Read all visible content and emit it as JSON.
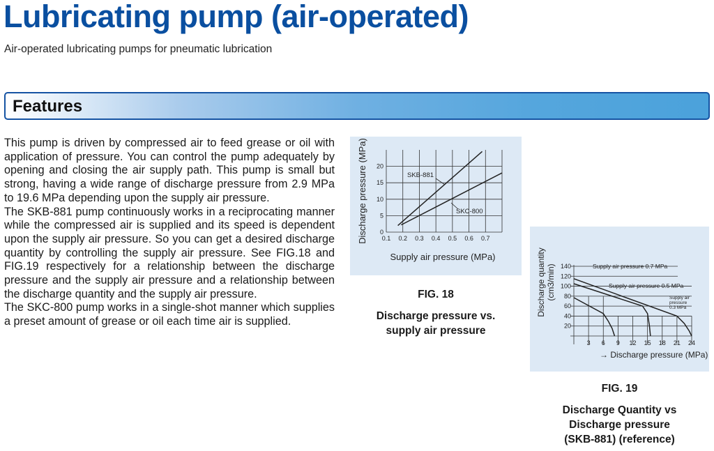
{
  "title": "Lubricating pump (air-operated)",
  "subtitle": "Air-operated lubricating pumps for pneumatic lubrication",
  "section": "Features",
  "paragraphs": [
    "This pump is driven by compressed air to feed grease or oil with application of pressure. You can control the pump adequately by opening and closing the air supply path. This pump is small but strong, having a wide range of discharge pressure from 2.9 MPa to 19.6 MPa depending upon the supply air pressure.",
    "The SKB-881 pump continuously works in a reciprocating manner while the compressed air is supplied and its speed is dependent upon the supply air pressure. So you can get a desired discharge quantity by controlling the supply air pressure. See FIG.18 and FIG.19 respectively for a relationship between the discharge pressure and the supply air pressure and a relationship between the discharge quantity and the supply air pressure.",
    "The SKC-800 pump works in a single-shot manner which supplies a preset amount of grease or oil each time air is supplied."
  ],
  "fig18": {
    "label": "FIG. 18",
    "caption_1": "Discharge pressure vs.",
    "caption_2": "supply air pressure"
  },
  "fig19": {
    "label": "FIG. 19",
    "caption_1": "Discharge Quantity vs",
    "caption_2": "Discharge pressure",
    "caption_3": "(SKB-881) (reference)"
  },
  "colors": {
    "title": "#0a4fa0",
    "figure_bg": "#dde9f5",
    "bar_border": "#1553a3"
  },
  "chart_data": [
    {
      "type": "line",
      "xlabel": "Supply air pressure (MPa)",
      "ylabel": "Discharge pressure (MPa)",
      "xlim": [
        0.1,
        0.8
      ],
      "ylim": [
        0,
        25
      ],
      "xticks": [
        "0.1",
        "0.2",
        "0.3",
        "0.4",
        "0.5",
        "0.6",
        "0.7"
      ],
      "yticks": [
        "0",
        "5",
        "10",
        "15",
        "20"
      ],
      "grid": true,
      "series": [
        {
          "name": "SKB-881",
          "points": [
            [
              0.17,
              2
            ],
            [
              0.68,
              24.5
            ]
          ]
        },
        {
          "name": "SKC-800",
          "points": [
            [
              0.19,
              2.2
            ],
            [
              0.8,
              18
            ]
          ]
        }
      ]
    },
    {
      "type": "line",
      "xlabel": "Discharge pressure (MPa)",
      "ylabel_1": "Discharge quantity",
      "ylabel_2": "(cm3/min)",
      "xlim": [
        0,
        24
      ],
      "ylim": [
        0,
        140
      ],
      "xticks": [
        "3",
        "6",
        "9",
        "12",
        "15",
        "18",
        "21",
        "24"
      ],
      "yticks": [
        "20",
        "40",
        "60",
        "80",
        "100",
        "120",
        "140"
      ],
      "grid": true,
      "series": [
        {
          "name": "Supply air pressure 0.7 MPa",
          "points": [
            [
              0,
              115
            ],
            [
              21,
              40
            ],
            [
              22.5,
              25
            ],
            [
              23.5,
              10
            ],
            [
              24,
              0
            ]
          ]
        },
        {
          "name": "Supply air pressure 0.5 MPa",
          "points": [
            [
              0,
              105
            ],
            [
              14,
              60
            ],
            [
              15,
              45
            ],
            [
              15.4,
              20
            ],
            [
              15.6,
              0
            ]
          ]
        },
        {
          "name_1": "Supply air",
          "name_2": "pressure",
          "name_3": "0.3 MPa",
          "points": [
            [
              0,
              77
            ],
            [
              6,
              45
            ],
            [
              7,
              30
            ],
            [
              7.8,
              15
            ],
            [
              8.3,
              0
            ]
          ]
        }
      ]
    }
  ]
}
